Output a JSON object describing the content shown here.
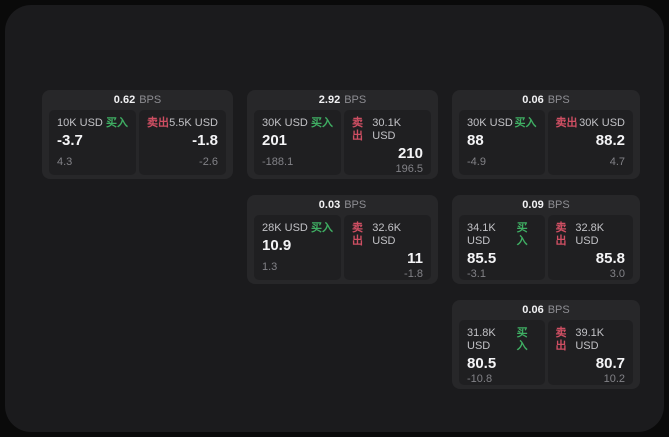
{
  "labels": {
    "bps_unit": "BPS",
    "buy": "买入",
    "sell": "卖出"
  },
  "colors": {
    "buy": "#3fae63",
    "sell": "#cf4f63",
    "window_bg": "#1b1b1d",
    "card_bg": "#272729",
    "panel_bg": "#1f1f21"
  },
  "cards": [
    {
      "bps": "0.62",
      "buy": {
        "amount": "10K USD",
        "price": "-3.7",
        "delta": "4.3"
      },
      "sell": {
        "amount": "5.5K USD",
        "price": "-1.8",
        "delta": "-2.6"
      }
    },
    {
      "bps": "2.92",
      "buy": {
        "amount": "30K USD",
        "price": "201",
        "delta": "-188.1"
      },
      "sell": {
        "amount": "30.1K USD",
        "price": "210",
        "delta": "196.5"
      }
    },
    {
      "bps": "0.06",
      "buy": {
        "amount": "30K USD",
        "price": "88",
        "delta": "-4.9"
      },
      "sell": {
        "amount": "30K USD",
        "price": "88.2",
        "delta": "4.7"
      }
    },
    {
      "bps": "0.03",
      "buy": {
        "amount": "28K USD",
        "price": "10.9",
        "delta": "1.3"
      },
      "sell": {
        "amount": "32.6K USD",
        "price": "11",
        "delta": "-1.8"
      }
    },
    {
      "bps": "0.09",
      "buy": {
        "amount": "34.1K USD",
        "price": "85.5",
        "delta": "-3.1"
      },
      "sell": {
        "amount": "32.8K USD",
        "price": "85.8",
        "delta": "3.0"
      }
    },
    {
      "bps": "0.06",
      "buy": {
        "amount": "31.8K USD",
        "price": "80.5",
        "delta": "-10.8"
      },
      "sell": {
        "amount": "39.1K USD",
        "price": "80.7",
        "delta": "10.2"
      }
    }
  ]
}
